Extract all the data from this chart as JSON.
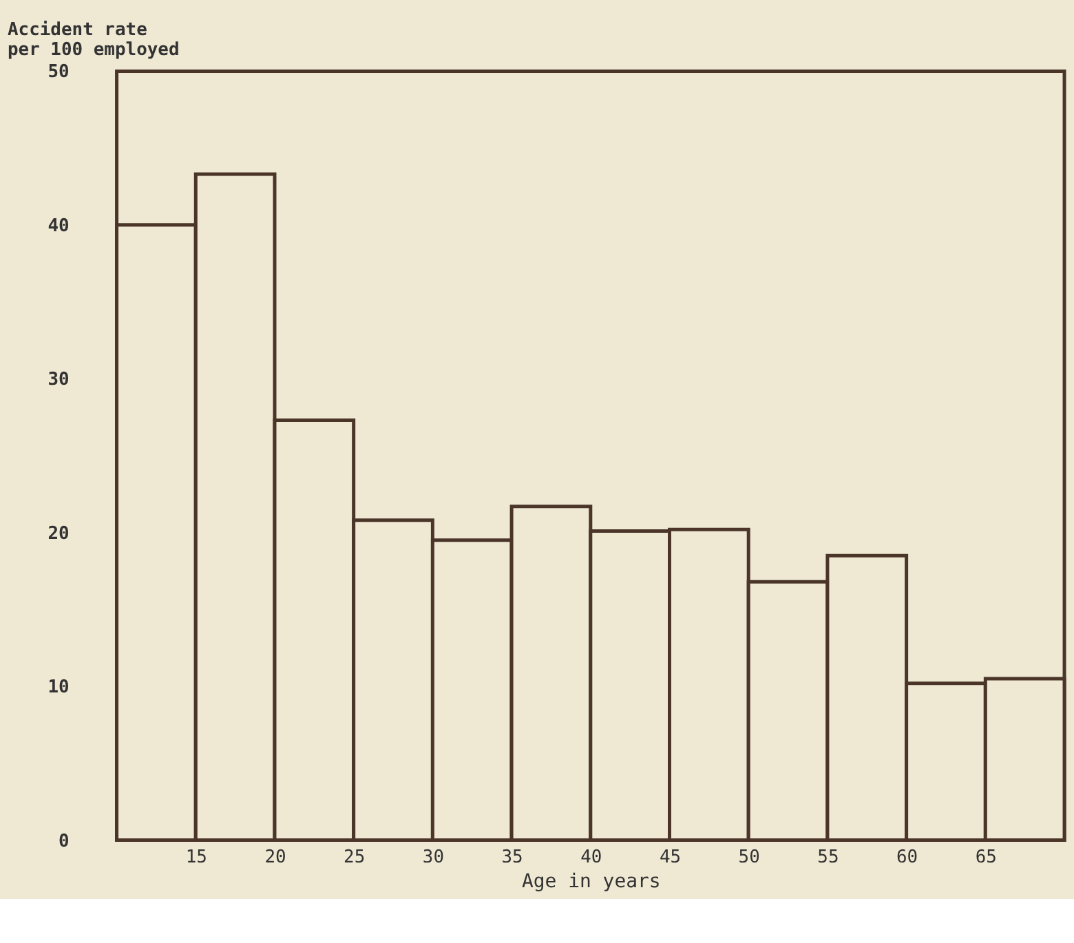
{
  "chart_data": {
    "type": "histogram",
    "xlabel": "Age in years",
    "ylabel": "Accident rate per 100 employed",
    "bins": [
      10,
      15,
      20,
      25,
      30,
      35,
      40,
      45,
      50,
      55,
      60,
      65,
      70
    ],
    "values": [
      40.0,
      43.3,
      27.3,
      20.8,
      19.5,
      21.7,
      20.1,
      20.2,
      16.8,
      18.5,
      10.2,
      10.5
    ],
    "color": "#4a3528",
    "xlim": [
      10,
      70
    ],
    "xticks": [
      15,
      20,
      25,
      30,
      35,
      40,
      45,
      50,
      55,
      60,
      65
    ],
    "ylim": [
      0,
      50
    ],
    "yticks": [
      0,
      10,
      20,
      30,
      40,
      50
    ],
    "grid": false
  }
}
